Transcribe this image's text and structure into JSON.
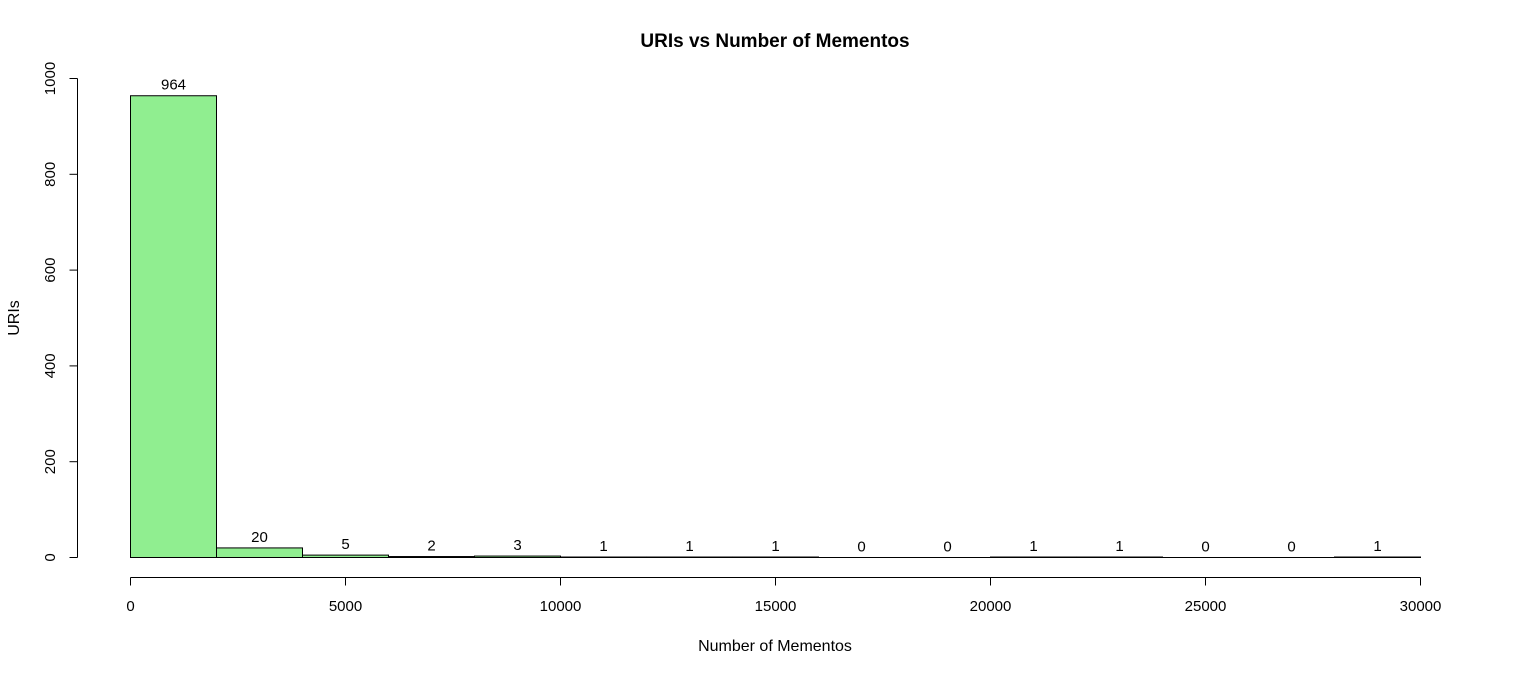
{
  "chart_data": {
    "type": "bar",
    "title": "URIs vs Number of Mementos",
    "xlabel": "Number of Mementos",
    "ylabel": "URIs",
    "bin_edges": [
      0,
      2000,
      4000,
      6000,
      8000,
      10000,
      12000,
      14000,
      16000,
      18000,
      20000,
      22000,
      24000,
      26000,
      28000,
      30000
    ],
    "values": [
      964,
      20,
      5,
      2,
      3,
      1,
      1,
      1,
      0,
      0,
      1,
      1,
      0,
      0,
      1
    ],
    "data_labels": [
      "964",
      "20",
      "5",
      "2",
      "3",
      "1",
      "1",
      "1",
      "0",
      "0",
      "1",
      "1",
      "0",
      "0",
      "1"
    ],
    "xlim": [
      0,
      30000
    ],
    "ylim": [
      0,
      1000
    ],
    "x_ticks": [
      0,
      5000,
      10000,
      15000,
      20000,
      25000,
      30000
    ],
    "x_tick_labels": [
      "0",
      "5000",
      "10000",
      "15000",
      "20000",
      "25000",
      "30000"
    ],
    "y_ticks": [
      0,
      200,
      400,
      600,
      800,
      1000
    ],
    "y_tick_labels": [
      "0",
      "200",
      "400",
      "600",
      "800",
      "1000"
    ],
    "bar_color": "#90ee90",
    "bar_border_color": "#000000",
    "grid": false,
    "legend": "none"
  }
}
